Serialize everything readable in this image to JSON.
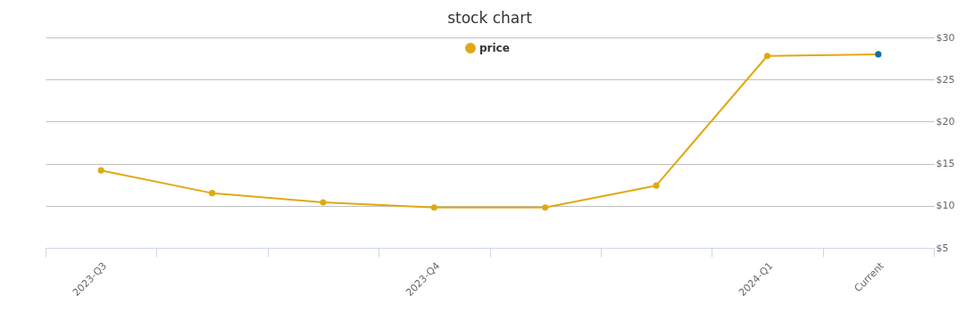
{
  "chart_data": {
    "type": "line",
    "title": "stock chart",
    "categories": [
      "2023-Q3",
      null,
      null,
      "2023-Q4",
      null,
      null,
      "2024-Q1",
      "Current"
    ],
    "series": [
      {
        "name": "price",
        "color": "#e0a913",
        "colors": [
          "#e0a913",
          "#e0a913",
          "#e0a913",
          "#e0a913",
          "#e0a913",
          "#e0a913",
          "#e0a913",
          "#0a6fa6"
        ],
        "values": [
          14.2,
          11.5,
          10.4,
          9.8,
          9.8,
          12.4,
          27.8,
          28.0
        ]
      }
    ],
    "ylim": [
      5,
      30
    ],
    "yticks": [
      {
        "value": 5,
        "label": "$5"
      },
      {
        "value": 10,
        "label": "$10"
      },
      {
        "value": 15,
        "label": "$15"
      },
      {
        "value": 20,
        "label": "$20"
      },
      {
        "value": 25,
        "label": "$25"
      },
      {
        "value": 30,
        "label": "$30"
      }
    ],
    "grid": "y",
    "legend": "top",
    "marker": "circle"
  }
}
